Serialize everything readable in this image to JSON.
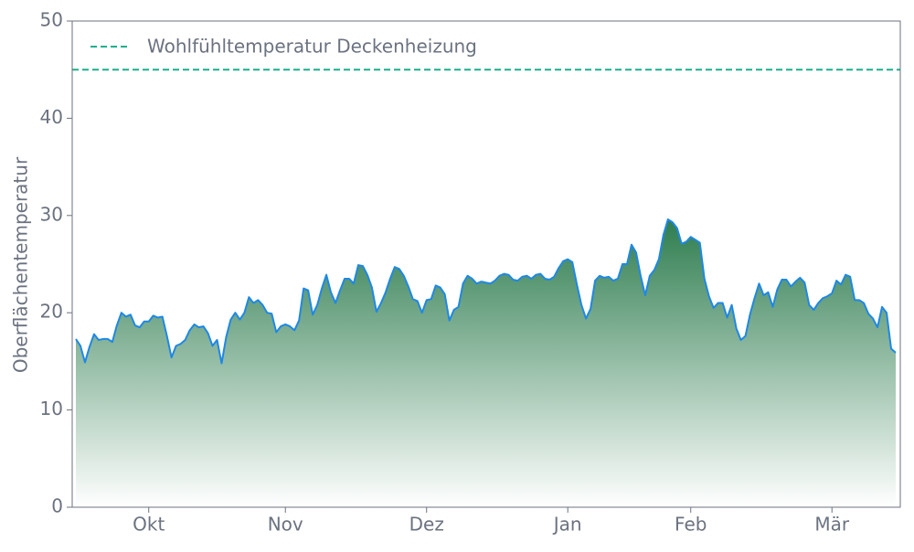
{
  "chart_data": {
    "type": "area",
    "y_label": "Oberflächentemperatur",
    "ylim": [
      0,
      50
    ],
    "yticks": [
      0,
      10,
      20,
      30,
      40,
      50
    ],
    "categories": [
      null,
      null,
      null,
      null,
      null,
      null,
      null,
      null,
      null,
      null,
      null,
      null,
      null,
      null,
      null,
      null,
      "Okt",
      null,
      null,
      null,
      null,
      null,
      null,
      null,
      null,
      null,
      null,
      null,
      null,
      null,
      null,
      null,
      null,
      null,
      null,
      null,
      null,
      null,
      null,
      null,
      null,
      null,
      null,
      null,
      null,
      null,
      "Nov",
      null,
      null,
      null,
      null,
      null,
      null,
      null,
      null,
      null,
      null,
      null,
      null,
      null,
      null,
      null,
      null,
      null,
      null,
      null,
      null,
      null,
      null,
      null,
      null,
      null,
      null,
      null,
      null,
      null,
      null,
      "Dez",
      null,
      null,
      null,
      null,
      null,
      null,
      null,
      null,
      null,
      null,
      null,
      null,
      null,
      null,
      null,
      null,
      null,
      null,
      null,
      null,
      null,
      null,
      null,
      null,
      null,
      null,
      null,
      null,
      null,
      null,
      "Jan",
      null,
      null,
      null,
      null,
      null,
      null,
      null,
      null,
      null,
      null,
      null,
      null,
      null,
      null,
      null,
      null,
      null,
      null,
      null,
      null,
      null,
      null,
      null,
      null,
      null,
      null,
      "Feb",
      null,
      null,
      null,
      null,
      null,
      null,
      null,
      null,
      null,
      null,
      null,
      null,
      null,
      null,
      null,
      null,
      null,
      null,
      null,
      null,
      null,
      null,
      null,
      null,
      null,
      null,
      null,
      null,
      null,
      null,
      "Mär",
      null,
      null,
      null,
      null,
      null,
      null,
      null,
      null,
      null,
      null,
      null,
      null,
      null,
      null
    ],
    "series": [
      {
        "color": "#1e88e5",
        "fill_top": "#2e7d4f",
        "fill_bottom": "#ffffff",
        "values": [
          17.3,
          16.6,
          14.9,
          16.5,
          17.8,
          17.2,
          17.3,
          17.3,
          17.0,
          18.7,
          20.0,
          19.6,
          19.8,
          18.7,
          18.5,
          19.1,
          19.1,
          19.7,
          19.5,
          19.6,
          17.6,
          15.4,
          16.6,
          16.8,
          17.2,
          18.2,
          18.8,
          18.5,
          18.6,
          17.9,
          16.6,
          17.2,
          14.8,
          17.5,
          19.3,
          20.0,
          19.3,
          20.0,
          21.6,
          21.0,
          21.3,
          20.8,
          20.0,
          19.9,
          18.0,
          18.6,
          18.8,
          18.6,
          18.2,
          19.2,
          22.5,
          22.3,
          19.8,
          20.8,
          22.5,
          23.9,
          22.1,
          21.0,
          22.3,
          23.5,
          23.5,
          23.0,
          24.9,
          24.8,
          23.9,
          22.6,
          20.1,
          21.0,
          22.1,
          23.5,
          24.7,
          24.5,
          23.8,
          22.7,
          21.4,
          21.2,
          20.0,
          21.3,
          21.4,
          22.8,
          22.6,
          21.9,
          19.2,
          20.3,
          20.6,
          23.0,
          23.8,
          23.5,
          23.0,
          23.2,
          23.1,
          23.0,
          23.3,
          23.8,
          24.0,
          23.9,
          23.4,
          23.3,
          23.7,
          23.8,
          23.5,
          23.9,
          24.0,
          23.5,
          23.4,
          23.7,
          24.6,
          25.3,
          25.5,
          25.2,
          22.9,
          20.8,
          19.4,
          20.4,
          23.3,
          23.8,
          23.6,
          23.7,
          23.3,
          23.5,
          25.0,
          25.0,
          27.0,
          26.2,
          23.8,
          21.8,
          23.8,
          24.4,
          25.5,
          28.0,
          29.6,
          29.3,
          28.7,
          27.1,
          27.3,
          27.8,
          27.5,
          27.2,
          23.5,
          21.7,
          20.5,
          21.0,
          21.0,
          19.5,
          20.8,
          18.4,
          17.2,
          17.6,
          19.8,
          21.5,
          23.0,
          21.8,
          22.1,
          20.6,
          22.4,
          23.4,
          23.4,
          22.7,
          23.2,
          23.6,
          23.1,
          20.8,
          20.3,
          21.0,
          21.5,
          21.7,
          22.0,
          23.3,
          22.9,
          23.9,
          23.7,
          21.3,
          21.3,
          21.0,
          19.9,
          19.4,
          18.5,
          20.6,
          20.0,
          16.3,
          15.9
        ]
      }
    ],
    "reference_line": {
      "name": "Wohlfühltemperatur Deckenheizung",
      "value": 45,
      "color": "#1aaf8b"
    }
  }
}
